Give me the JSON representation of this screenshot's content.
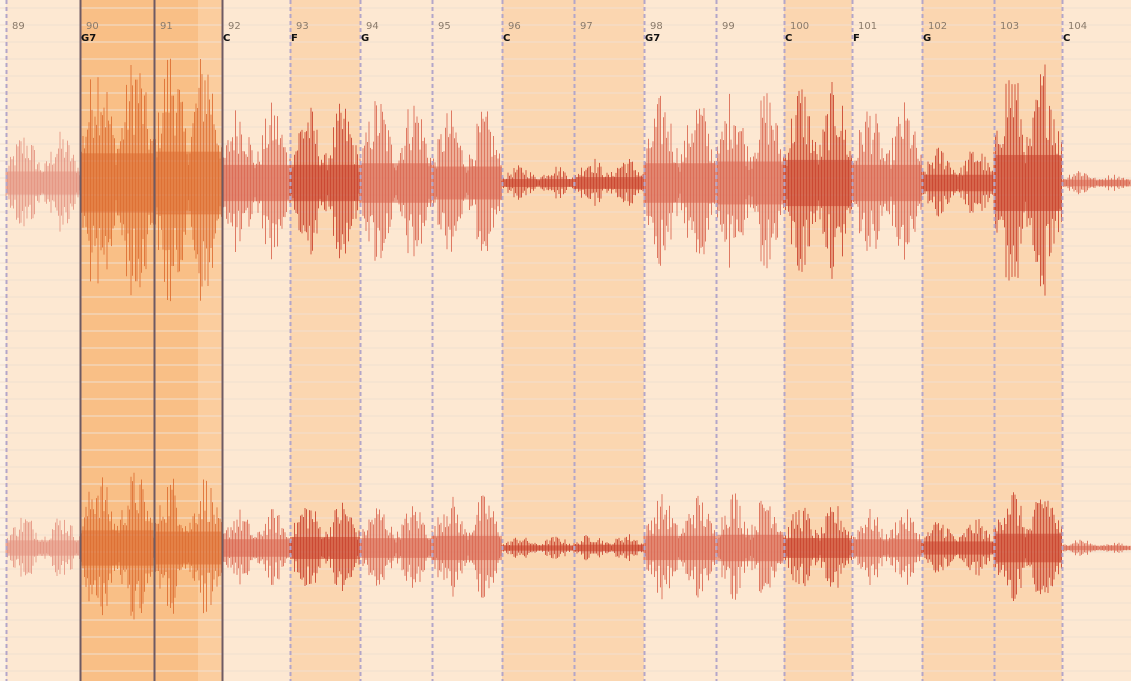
{
  "colors": {
    "background": "#fdf1e4",
    "section_light": "#fde8d2",
    "section_mid": "#fbd6b0",
    "section_dark": "#f9bf86",
    "barline_dark": "#6e5a63",
    "beat_line": "#b3a6c9",
    "wave_dark": "#c9402a",
    "wave_light": "#d9654f",
    "wave_orange": "#dd6c30",
    "gridline": "#f0dfd0"
  },
  "measures": [
    {
      "number": "89",
      "chord": ""
    },
    {
      "number": "90",
      "chord": "G7"
    },
    {
      "number": "91",
      "chord": ""
    },
    {
      "number": "92",
      "chord": "C"
    },
    {
      "number": "93",
      "chord": "F"
    },
    {
      "number": "94",
      "chord": "G"
    },
    {
      "number": "95",
      "chord": ""
    },
    {
      "number": "96",
      "chord": "C"
    },
    {
      "number": "97",
      "chord": ""
    },
    {
      "number": "98",
      "chord": "G7"
    },
    {
      "number": "99",
      "chord": ""
    },
    {
      "number": "100",
      "chord": "C"
    },
    {
      "number": "101",
      "chord": "F"
    },
    {
      "number": "102",
      "chord": "G"
    },
    {
      "number": "103",
      "chord": ""
    },
    {
      "number": "104",
      "chord": "C"
    }
  ],
  "channels": [
    "left",
    "right"
  ]
}
